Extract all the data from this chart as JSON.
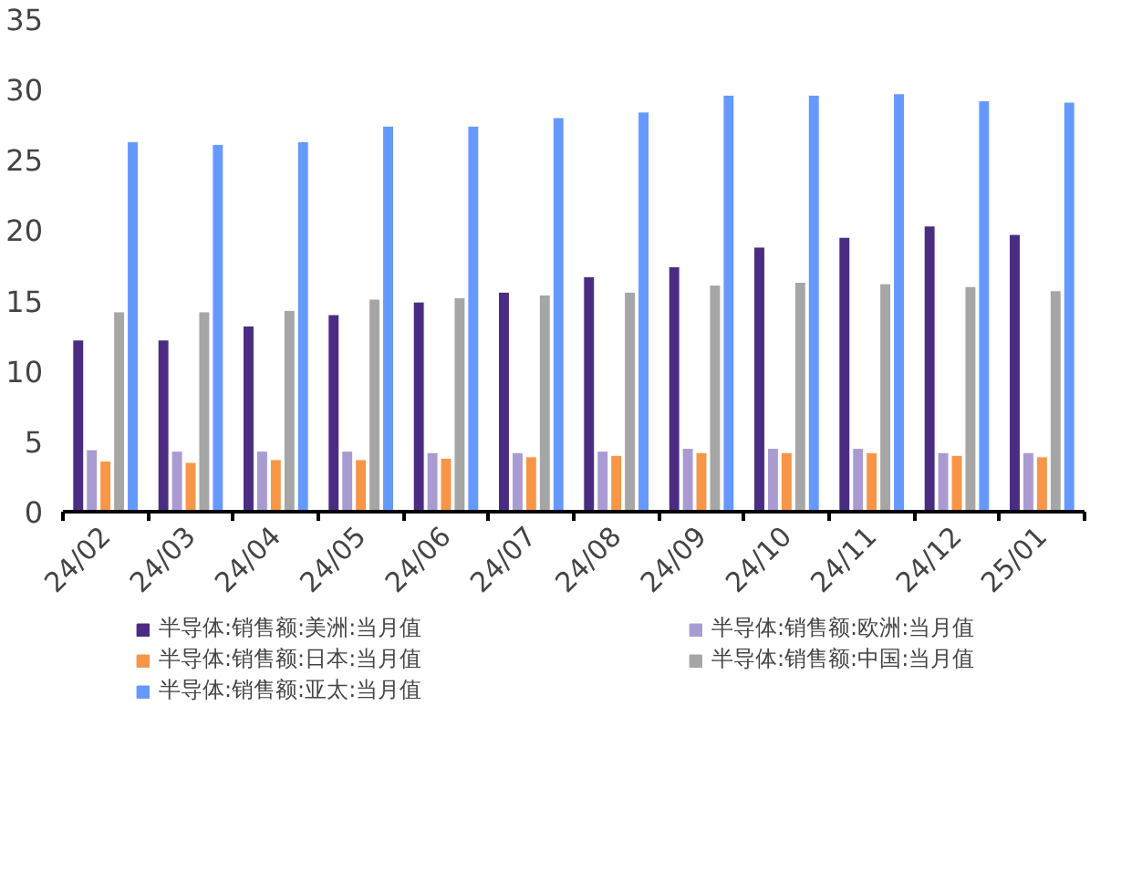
{
  "chart_data": {
    "type": "bar",
    "categories": [
      "24/02",
      "24/03",
      "24/04",
      "24/05",
      "24/06",
      "24/07",
      "24/08",
      "24/09",
      "24/10",
      "24/11",
      "24/12",
      "25/01"
    ],
    "ylim": [
      0,
      35
    ],
    "yticks": [
      0,
      5,
      10,
      15,
      20,
      25,
      30,
      35
    ],
    "grid": false,
    "legend": "bottom",
    "series": [
      {
        "name": "半导体:销售额:美洲:当月值",
        "color": "#4b2c83",
        "values": [
          12.2,
          12.2,
          13.2,
          14.0,
          14.9,
          15.6,
          16.7,
          17.4,
          18.8,
          19.5,
          20.3,
          19.7
        ]
      },
      {
        "name": "半导体:销售额:欧洲:当月值",
        "color": "#a99bd1",
        "values": [
          4.4,
          4.3,
          4.3,
          4.3,
          4.2,
          4.2,
          4.3,
          4.5,
          4.5,
          4.5,
          4.2,
          4.2
        ]
      },
      {
        "name": "半导体:销售额:日本:当月值",
        "color": "#f79646",
        "values": [
          3.6,
          3.5,
          3.7,
          3.7,
          3.8,
          3.9,
          4.0,
          4.2,
          4.2,
          4.2,
          4.0,
          3.9
        ]
      },
      {
        "name": "半导体:销售额:中国:当月值",
        "color": "#a6a6a6",
        "values": [
          14.2,
          14.2,
          14.3,
          15.1,
          15.2,
          15.4,
          15.6,
          16.1,
          16.3,
          16.2,
          16.0,
          15.7
        ]
      },
      {
        "name": "半导体:销售额:亚太:当月值",
        "color": "#6699ff",
        "values": [
          26.3,
          26.1,
          26.3,
          27.4,
          27.4,
          28.0,
          28.4,
          29.6,
          29.6,
          29.7,
          29.2,
          29.1
        ]
      }
    ]
  }
}
